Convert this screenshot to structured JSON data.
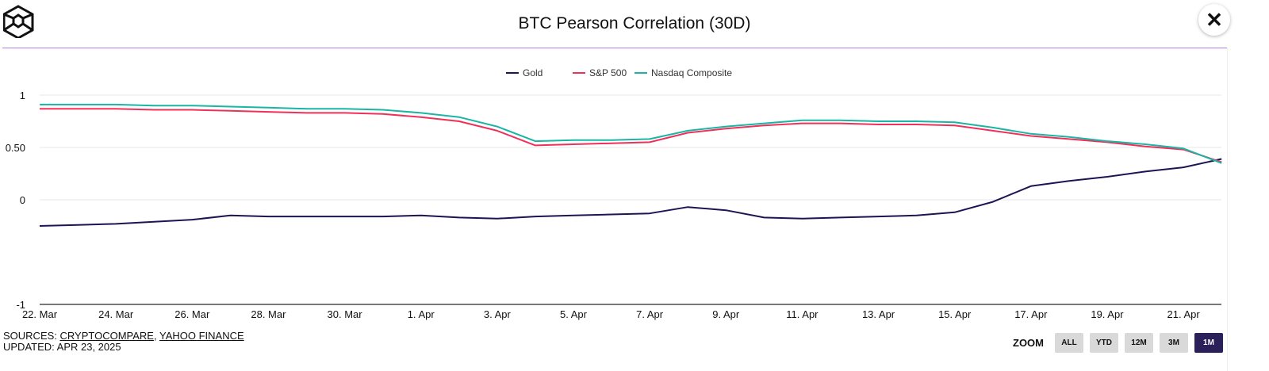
{
  "header": {
    "title": "BTC Pearson Correlation (30D)",
    "close_icon": "close-icon",
    "logo": "cube-logo"
  },
  "footer": {
    "sources_label": "SOURCES: ",
    "source_1": "CRYPTOCOMPARE",
    "sep": ", ",
    "source_2": "YAHOO FINANCE",
    "updated": "UPDATED: APR 23, 2025"
  },
  "zoom": {
    "label": "ZOOM",
    "buttons": [
      "ALL",
      "YTD",
      "12M",
      "3M",
      "1M"
    ],
    "selected": "1M"
  },
  "chart_data": {
    "type": "line",
    "title": "BTC Pearson Correlation (30D)",
    "ylim": [
      -1,
      1
    ],
    "yticks": [
      "1",
      "0.50",
      "0",
      "-1"
    ],
    "ytick_values": [
      1,
      0.5,
      0,
      -1
    ],
    "xticks": [
      "22. Mar",
      "24. Mar",
      "26. Mar",
      "28. Mar",
      "30. Mar",
      "1. Apr",
      "3. Apr",
      "5. Apr",
      "7. Apr",
      "9. Apr",
      "11. Apr",
      "13. Apr",
      "15. Apr",
      "17. Apr",
      "19. Apr",
      "21. Apr"
    ],
    "legend_position": "top-center",
    "grid": true,
    "x": [
      "2025-03-22",
      "2025-03-23",
      "2025-03-24",
      "2025-03-25",
      "2025-03-26",
      "2025-03-27",
      "2025-03-28",
      "2025-03-29",
      "2025-03-30",
      "2025-03-31",
      "2025-04-01",
      "2025-04-02",
      "2025-04-03",
      "2025-04-04",
      "2025-04-05",
      "2025-04-06",
      "2025-04-07",
      "2025-04-08",
      "2025-04-09",
      "2025-04-10",
      "2025-04-11",
      "2025-04-12",
      "2025-04-13",
      "2025-04-14",
      "2025-04-15",
      "2025-04-16",
      "2025-04-17",
      "2025-04-18",
      "2025-04-19",
      "2025-04-20",
      "2025-04-21",
      "2025-04-22"
    ],
    "series": [
      {
        "name": "Gold",
        "color": "#1b1553",
        "values": [
          -0.25,
          -0.24,
          -0.23,
          -0.21,
          -0.19,
          -0.15,
          -0.16,
          -0.16,
          -0.16,
          -0.16,
          -0.15,
          -0.17,
          -0.18,
          -0.16,
          -0.15,
          -0.14,
          -0.13,
          -0.07,
          -0.1,
          -0.17,
          -0.18,
          -0.17,
          -0.16,
          -0.15,
          -0.12,
          -0.02,
          0.13,
          0.18,
          0.22,
          0.27,
          0.31,
          0.39
        ]
      },
      {
        "name": "S&P 500",
        "color": "#f0305a",
        "values": [
          0.87,
          0.87,
          0.87,
          0.86,
          0.86,
          0.85,
          0.84,
          0.83,
          0.83,
          0.82,
          0.79,
          0.75,
          0.66,
          0.52,
          0.53,
          0.54,
          0.55,
          0.64,
          0.68,
          0.71,
          0.73,
          0.73,
          0.72,
          0.72,
          0.71,
          0.66,
          0.61,
          0.58,
          0.55,
          0.51,
          0.48,
          0.36
        ]
      },
      {
        "name": "Nasdaq Composite",
        "color": "#1ab5a5",
        "values": [
          0.91,
          0.91,
          0.91,
          0.9,
          0.9,
          0.89,
          0.88,
          0.87,
          0.87,
          0.86,
          0.83,
          0.79,
          0.7,
          0.56,
          0.57,
          0.57,
          0.58,
          0.66,
          0.7,
          0.73,
          0.76,
          0.76,
          0.75,
          0.75,
          0.74,
          0.69,
          0.63,
          0.6,
          0.56,
          0.53,
          0.49,
          0.35
        ]
      }
    ]
  }
}
